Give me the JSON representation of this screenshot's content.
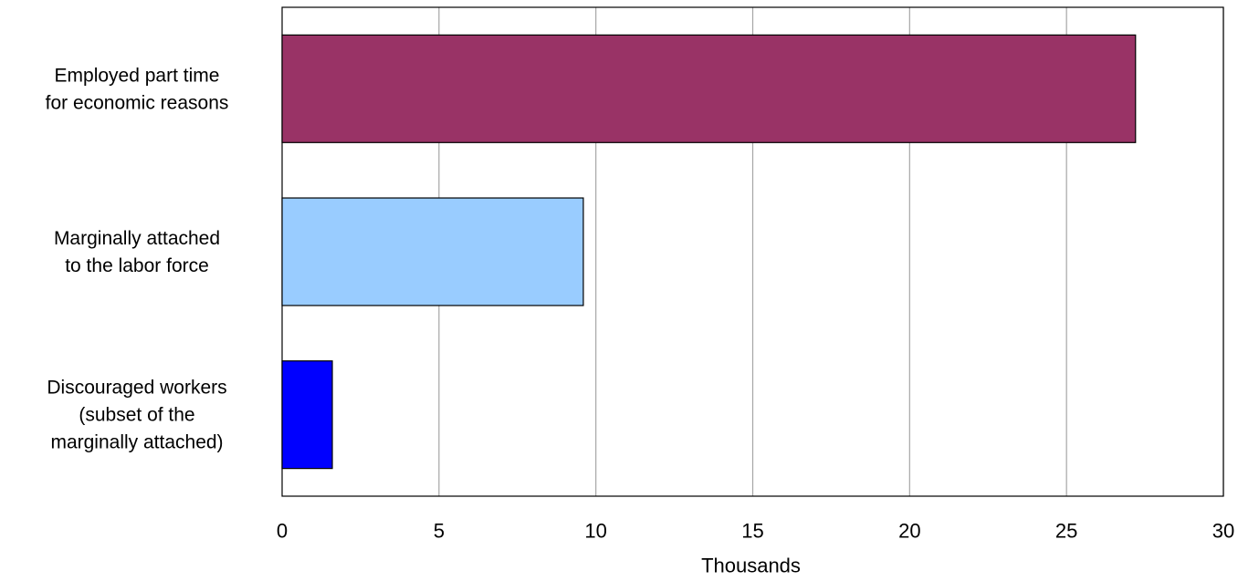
{
  "chart_data": {
    "type": "bar",
    "orientation": "horizontal",
    "categories": [
      [
        "Employed part time",
        "for economic reasons"
      ],
      [
        "Marginally attached",
        "to the labor force"
      ],
      [
        "Discouraged workers",
        "(subset of the",
        "marginally attached)"
      ]
    ],
    "values": [
      27.2,
      9.6,
      1.6
    ],
    "bar_colors": [
      "#993366",
      "#99CCFF",
      "#0000FF"
    ],
    "xlabel": "Thousands",
    "xlim": [
      0,
      30
    ],
    "xticks": [
      0,
      5,
      10,
      15,
      20,
      25,
      30
    ],
    "grid": true
  }
}
